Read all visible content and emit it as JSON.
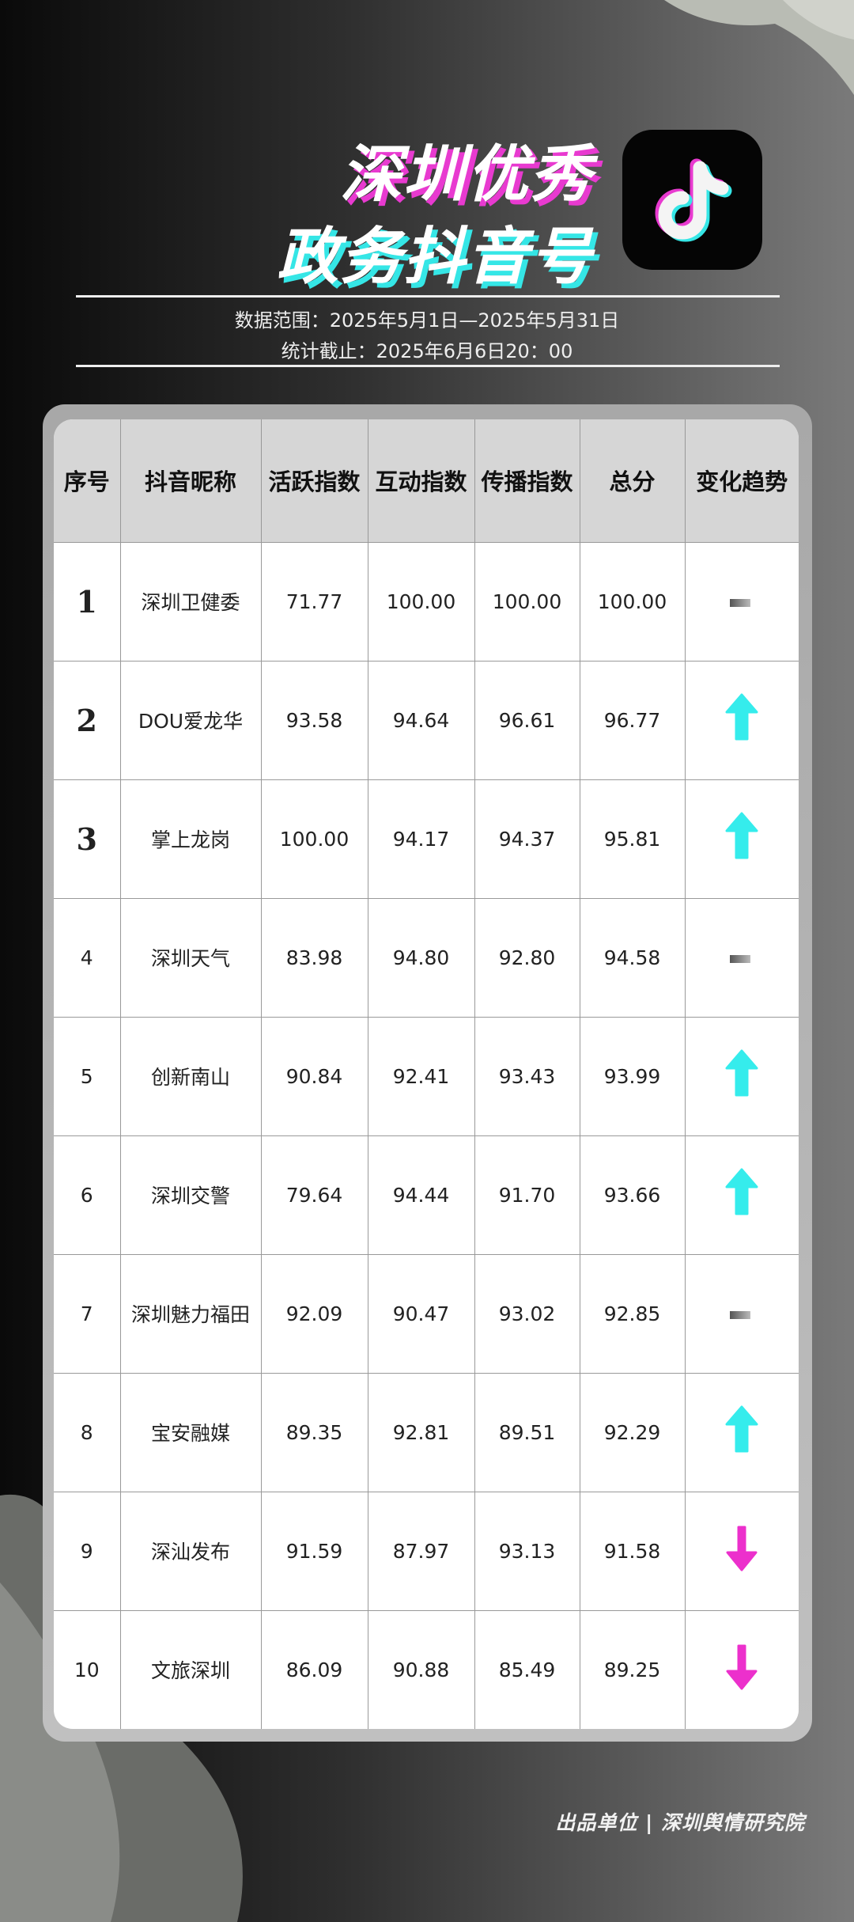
{
  "header": {
    "title_line1": "深圳优秀",
    "title_line2": "政务抖音号",
    "logo": "douyin-logo",
    "data_range": "数据范围：2025年5月1日—2025年5月31日",
    "cutoff": "统计截止：2025年6月6日20：00"
  },
  "colors": {
    "up": "#35ecec",
    "down": "#ec30cc",
    "flat": "#777777"
  },
  "table": {
    "columns": [
      "序号",
      "抖音昵称",
      "活跃指数",
      "互动指数",
      "传播指数",
      "总分",
      "变化趋势"
    ],
    "rows": [
      {
        "rank": "1",
        "name": "深圳卫健委",
        "active": "71.77",
        "interact": "100.00",
        "spread": "100.00",
        "total": "100.00",
        "trend": "flat"
      },
      {
        "rank": "2",
        "name": "DOU爱龙华",
        "active": "93.58",
        "interact": "94.64",
        "spread": "96.61",
        "total": "96.77",
        "trend": "up"
      },
      {
        "rank": "3",
        "name": "掌上龙岗",
        "active": "100.00",
        "interact": "94.17",
        "spread": "94.37",
        "total": "95.81",
        "trend": "up"
      },
      {
        "rank": "4",
        "name": "深圳天气",
        "active": "83.98",
        "interact": "94.80",
        "spread": "92.80",
        "total": "94.58",
        "trend": "flat"
      },
      {
        "rank": "5",
        "name": "创新南山",
        "active": "90.84",
        "interact": "92.41",
        "spread": "93.43",
        "total": "93.99",
        "trend": "up"
      },
      {
        "rank": "6",
        "name": "深圳交警",
        "active": "79.64",
        "interact": "94.44",
        "spread": "91.70",
        "total": "93.66",
        "trend": "up"
      },
      {
        "rank": "7",
        "name": "深圳魅力福田",
        "active": "92.09",
        "interact": "90.47",
        "spread": "93.02",
        "total": "92.85",
        "trend": "flat"
      },
      {
        "rank": "8",
        "name": "宝安融媒",
        "active": "89.35",
        "interact": "92.81",
        "spread": "89.51",
        "total": "92.29",
        "trend": "up"
      },
      {
        "rank": "9",
        "name": "深汕发布",
        "active": "91.59",
        "interact": "87.97",
        "spread": "93.13",
        "total": "91.58",
        "trend": "down"
      },
      {
        "rank": "10",
        "name": "文旅深圳",
        "active": "86.09",
        "interact": "90.88",
        "spread": "85.49",
        "total": "89.25",
        "trend": "down"
      }
    ]
  },
  "footer": {
    "text": "出品单位 | 深圳舆情研究院"
  }
}
